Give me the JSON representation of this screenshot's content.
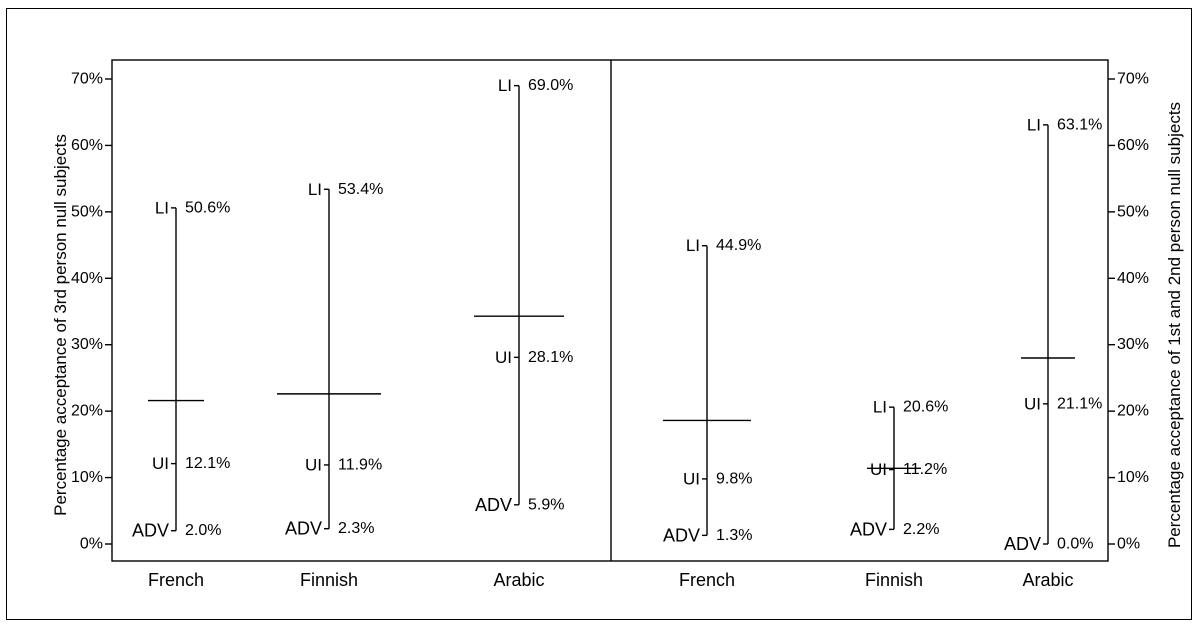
{
  "chart_data": {
    "type": "range",
    "y_left_label": "Percentage acceptance of 3rd person null subjects",
    "y_right_label": "Percentage acceptance of 1st and 2nd person null subjects",
    "ylim": [
      0,
      70
    ],
    "yticks": [
      "0%",
      "10%",
      "20%",
      "30%",
      "40%",
      "50%",
      "60%",
      "70%"
    ],
    "panels": [
      {
        "name": "3rd person",
        "groups": [
          {
            "label": "French",
            "mean": 21.6,
            "points": [
              {
                "label": "LI",
                "value": 50.6,
                "text": "50.6%"
              },
              {
                "label": "UI",
                "value": 12.1,
                "text": "12.1%"
              },
              {
                "label": "ADV",
                "value": 2.0,
                "text": "2.0%"
              }
            ]
          },
          {
            "label": "Finnish",
            "mean": 22.6,
            "points": [
              {
                "label": "LI",
                "value": 53.4,
                "text": "53.4%"
              },
              {
                "label": "UI",
                "value": 11.9,
                "text": "11.9%"
              },
              {
                "label": "ADV",
                "value": 2.3,
                "text": "2.3%"
              }
            ]
          },
          {
            "label": "Arabic",
            "mean": 34.3,
            "points": [
              {
                "label": "LI",
                "value": 69.0,
                "text": "69.0%"
              },
              {
                "label": "UI",
                "value": 28.1,
                "text": "28.1%"
              },
              {
                "label": "ADV",
                "value": 5.9,
                "text": "5.9%"
              }
            ]
          }
        ]
      },
      {
        "name": "1st and 2nd person",
        "groups": [
          {
            "label": "French",
            "mean": 18.6,
            "points": [
              {
                "label": "LI",
                "value": 44.9,
                "text": "44.9%"
              },
              {
                "label": "UI",
                "value": 9.8,
                "text": "9.8%"
              },
              {
                "label": "ADV",
                "value": 1.3,
                "text": "1.3%"
              }
            ]
          },
          {
            "label": "Finnish",
            "mean": 11.4,
            "points": [
              {
                "label": "LI",
                "value": 20.6,
                "text": "20.6%"
              },
              {
                "label": "UI",
                "value": 11.2,
                "text": "11.2%"
              },
              {
                "label": "ADV",
                "value": 2.2,
                "text": "2.2%"
              }
            ]
          },
          {
            "label": "Arabic",
            "mean": 28.0,
            "points": [
              {
                "label": "LI",
                "value": 63.1,
                "text": "63.1%"
              },
              {
                "label": "UI",
                "value": 21.1,
                "text": "21.1%"
              },
              {
                "label": "ADV",
                "value": 0.0,
                "text": "0.0%"
              }
            ]
          }
        ]
      }
    ]
  }
}
